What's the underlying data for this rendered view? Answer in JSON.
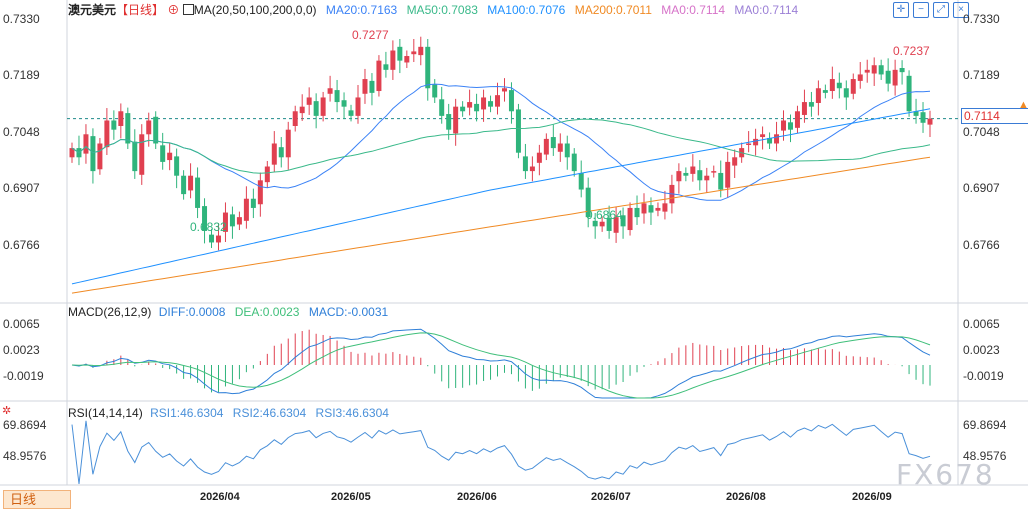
{
  "header": {
    "symbol": "澳元美元",
    "period": "【日线】",
    "ma_params": "MA(20,50,100,200,0,0)",
    "ma20": "MA20:0.7163",
    "ma50": "MA50:0.7083",
    "ma100": "MA100:0.7076",
    "ma200": "MA200:0.7011",
    "ma0a": "MA0:0.7114",
    "ma0b": "MA0:0.7114"
  },
  "price_axis": {
    "ticks": [
      "0.7330",
      "0.7189",
      "0.7048",
      "0.6907",
      "0.6766"
    ],
    "current": "0.7114",
    "current_value": 0.7114
  },
  "annotations": {
    "high1": "0.7277",
    "low1": "0.6832",
    "low2": "0.6864",
    "high2": "0.7237"
  },
  "macd": {
    "title": "MACD(26,12,9)",
    "diff": "DIFF:0.0008",
    "dea": "DEA:0.0023",
    "macd": "MACD:-0.0031",
    "ticks": [
      "0.0065",
      "0.0023",
      "-0.0019"
    ]
  },
  "rsi": {
    "title": "RSI(14,14,14)",
    "rsi1": "RSI1:46.6304",
    "rsi2": "RSI2:46.6304",
    "rsi3": "RSI3:46.6304",
    "ticks": [
      "69.8694",
      "48.9576"
    ]
  },
  "x_ticks": [
    "2026/04",
    "2026/05",
    "2026/06",
    "2026/07",
    "2026/08",
    "2026/09"
  ],
  "timeframe": "日线",
  "watermark": "FX678",
  "colors": {
    "up": "#e04050",
    "down": "#2fb47c",
    "ma20": "#3b82f6",
    "ma50": "#3ab98a",
    "ma100": "#1e90ff",
    "ma200": "#f08a24",
    "diff": "#2f7fd8",
    "dea": "#3fbf7a",
    "rsi": "#4a90d9"
  },
  "chart_data": {
    "type": "candlestick",
    "ylim": [
      0.672,
      0.735
    ],
    "closes": [
      0.705,
      0.703,
      0.708,
      0.7,
      0.706,
      0.711,
      0.709,
      0.713,
      0.706,
      0.7,
      0.708,
      0.711,
      0.706,
      0.702,
      0.704,
      0.699,
      0.695,
      0.699,
      0.692,
      0.687,
      0.6845,
      0.686,
      0.691,
      0.688,
      0.69,
      0.694,
      0.692,
      0.698,
      0.701,
      0.706,
      0.703,
      0.709,
      0.713,
      0.714,
      0.716,
      0.712,
      0.716,
      0.718,
      0.715,
      0.714,
      0.712,
      0.716,
      0.72,
      0.717,
      0.724,
      0.722,
      0.7262,
      0.724,
      0.725,
      0.726,
      0.727,
      0.718,
      0.716,
      0.712,
      0.709,
      0.714,
      0.713,
      0.715,
      0.713,
      0.716,
      0.714,
      0.7165,
      0.718,
      0.713,
      0.704,
      0.7,
      0.701,
      0.704,
      0.707,
      0.705,
      0.706,
      0.703,
      0.7,
      0.696,
      0.69,
      0.688,
      0.689,
      0.687,
      0.69,
      0.688,
      0.692,
      0.69,
      0.693,
      0.691,
      0.692,
      0.693,
      0.697,
      0.7,
      0.699,
      0.701,
      0.698,
      0.699,
      0.7,
      0.696,
      0.702,
      0.703,
      0.705,
      0.706,
      0.707,
      0.708,
      0.706,
      0.708,
      0.711,
      0.709,
      0.713,
      0.715,
      0.714,
      0.718,
      0.717,
      0.72,
      0.718,
      0.716,
      0.72,
      0.721,
      0.722,
      0.723,
      0.721,
      0.719,
      0.722,
      0.7215,
      0.713,
      0.712,
      0.7105,
      0.7114
    ]
  }
}
